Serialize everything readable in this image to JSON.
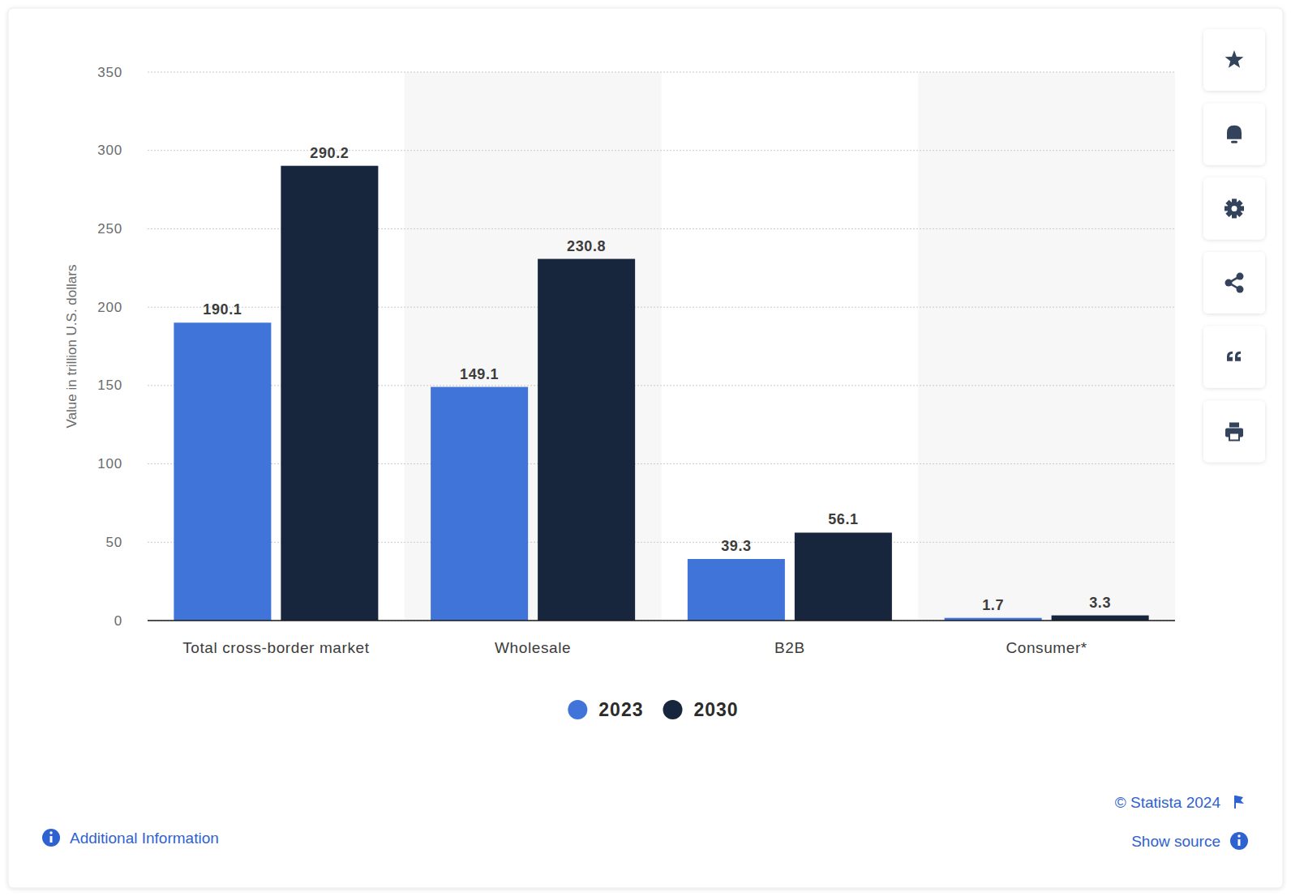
{
  "chart_data": {
    "type": "bar",
    "y_label": "Value in trillion U.S. dollars",
    "categories": [
      "Total cross-border market",
      "Wholesale",
      "B2B",
      "Consumer*"
    ],
    "series": [
      {
        "name": "2023",
        "color": "#4174d9",
        "values": [
          190.1,
          149.1,
          39.3,
          1.7
        ]
      },
      {
        "name": "2030",
        "color": "#17263c",
        "values": [
          290.2,
          230.8,
          56.1,
          3.3
        ]
      }
    ],
    "ylim": [
      0,
      350
    ],
    "yticks": [
      0,
      50,
      100,
      150,
      200,
      250,
      300,
      350
    ],
    "grid": true,
    "data_labels": true,
    "legend": "bottom",
    "annotations": [
      "© Statista 2024",
      "Show source",
      "Additional Information"
    ]
  }
}
